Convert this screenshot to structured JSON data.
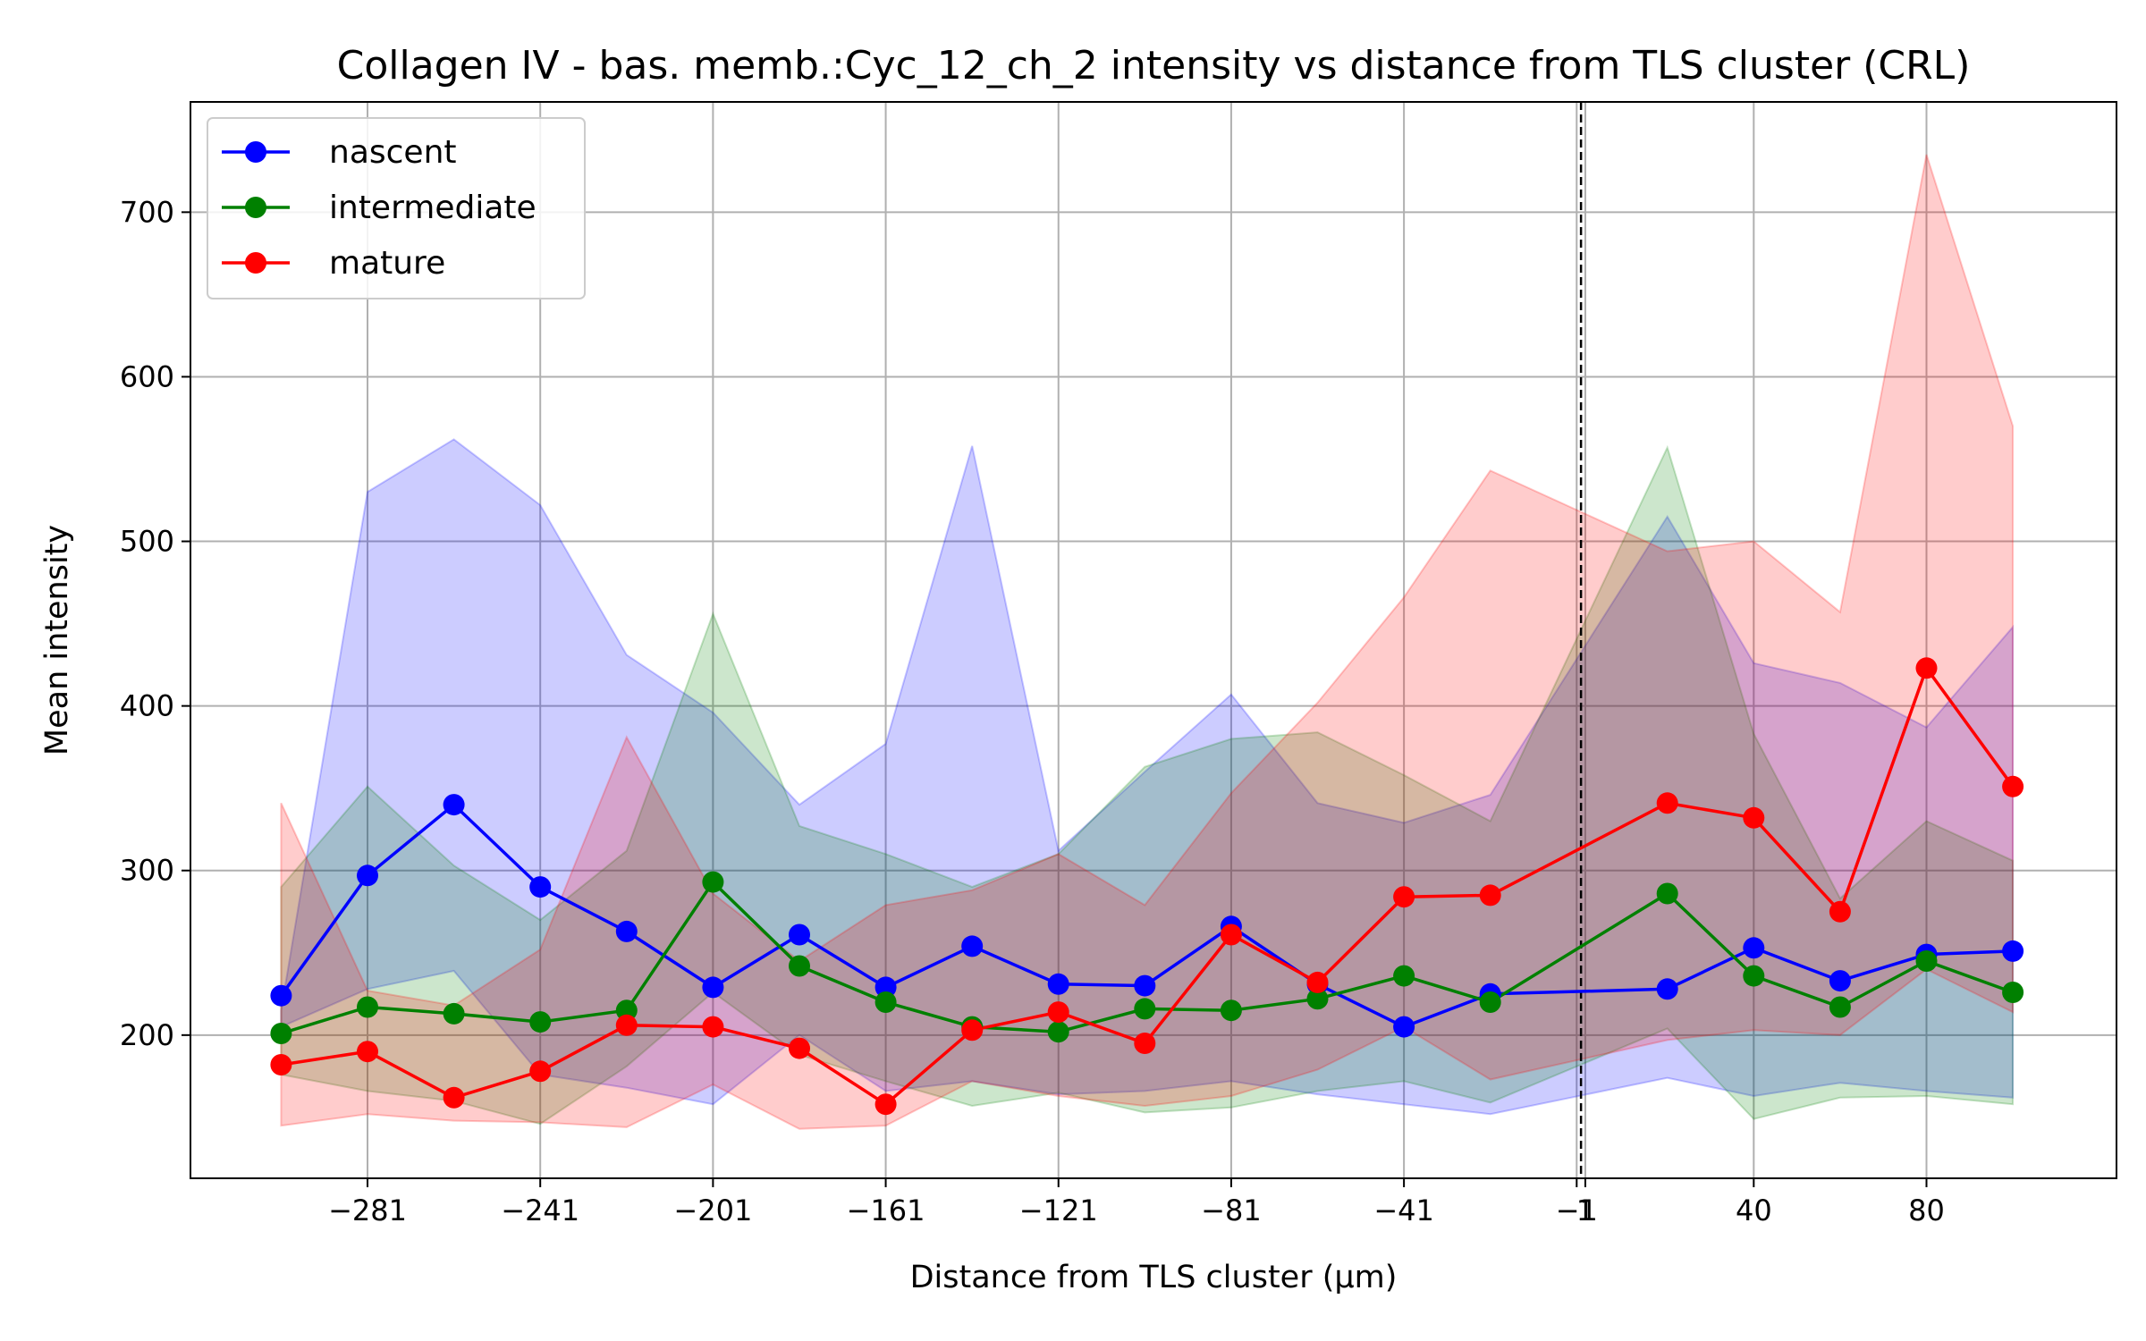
{
  "chart_data": {
    "type": "line",
    "title": "Collagen IV - bas. memb.:Cyc_12_ch_2 intensity vs distance from TLS cluster (CRL)",
    "xlabel": "Distance from TLS cluster (μm)",
    "ylabel": "Mean intensity",
    "xlim": [
      -322,
      124
    ],
    "ylim": [
      113,
      767
    ],
    "x": [
      -301,
      -281,
      -261,
      -241,
      -221,
      -201,
      -181,
      -161,
      -141,
      -121,
      -101,
      -81,
      -61,
      -41,
      -21,
      20,
      40,
      60,
      80,
      100
    ],
    "x_ticks": [
      -281,
      -241,
      -201,
      -161,
      -121,
      -81,
      -41,
      -1,
      1,
      40,
      80
    ],
    "x_tick_labels": [
      "−281",
      "−241",
      "−201",
      "−161",
      "−121",
      "−81",
      "−41",
      "−1",
      "1",
      "40",
      "80"
    ],
    "y_ticks": [
      200,
      300,
      400,
      500,
      600,
      700
    ],
    "y_tick_labels": [
      "200",
      "300",
      "400",
      "500",
      "600",
      "700"
    ],
    "vline_x": 0,
    "grid": true,
    "legend_position": "upper-left",
    "series": [
      {
        "name": "nascent",
        "color": "#0000ff",
        "values": [
          224,
          297,
          340,
          290,
          263,
          229,
          261,
          229,
          254,
          231,
          230,
          266,
          231,
          205,
          225,
          228,
          253,
          233,
          249,
          251
        ],
        "upper": [
          215,
          530,
          562,
          522,
          431,
          396,
          340,
          377,
          558,
          312,
          360,
          407,
          341,
          329,
          346,
          515,
          426,
          414,
          387,
          448
        ],
        "lower": [
          205,
          228,
          239,
          176,
          168,
          158,
          200,
          166,
          172,
          164,
          166,
          172,
          164,
          158,
          152,
          174,
          163,
          171,
          166,
          162
        ]
      },
      {
        "name": "intermediate",
        "color": "#008000",
        "values": [
          201,
          217,
          213,
          208,
          215,
          293,
          242,
          220,
          205,
          202,
          216,
          215,
          222,
          236,
          220,
          286,
          236,
          217,
          245,
          226
        ],
        "upper": [
          290,
          351,
          303,
          270,
          312,
          456,
          327,
          310,
          290,
          310,
          363,
          380,
          384,
          358,
          330,
          557,
          383,
          283,
          330,
          306
        ],
        "lower": [
          176,
          166,
          160,
          146,
          181,
          226,
          188,
          172,
          157,
          165,
          153,
          156,
          166,
          172,
          159,
          204,
          149,
          162,
          163,
          158
        ]
      },
      {
        "name": "mature",
        "color": "#ff0000",
        "values": [
          182,
          190,
          162,
          178,
          206,
          205,
          192,
          158,
          203,
          214,
          195,
          261,
          232,
          284,
          285,
          341,
          332,
          275,
          423,
          351
        ],
        "upper": [
          341,
          227,
          218,
          252,
          381,
          286,
          245,
          279,
          288,
          310,
          279,
          347,
          402,
          466,
          543,
          494,
          500,
          457,
          735,
          570
        ],
        "lower": [
          145,
          152,
          148,
          147,
          144,
          170,
          143,
          145,
          172,
          163,
          157,
          163,
          179,
          205,
          173,
          197,
          203,
          200,
          240,
          214
        ]
      }
    ]
  }
}
